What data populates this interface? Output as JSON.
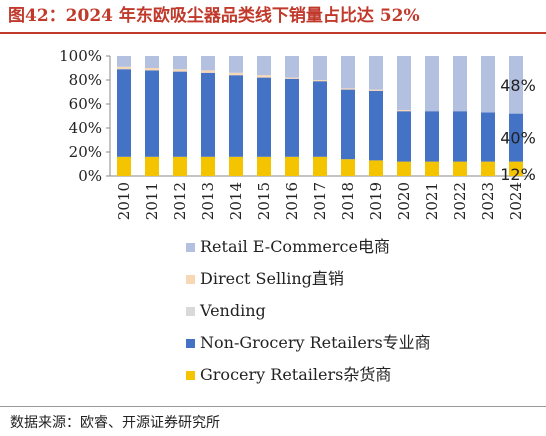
{
  "page": {
    "title": "图42：2024 年东欧吸尘器品类线下销量占比达 52%",
    "source": "数据来源：欧睿、开源证券研究所"
  },
  "chart_data": {
    "type": "bar",
    "stacked": true,
    "categories": [
      "2010",
      "2011",
      "2012",
      "2013",
      "2014",
      "2015",
      "2016",
      "2017",
      "2018",
      "2019",
      "2020",
      "2021",
      "2022",
      "2023",
      "2024"
    ],
    "series": [
      {
        "name": "Grocery Retailers杂货商",
        "color": "#f5c400",
        "values": [
          16,
          16,
          16,
          16,
          16,
          16,
          16,
          16,
          14,
          13,
          12,
          12,
          12,
          12,
          12
        ]
      },
      {
        "name": "Non-Grocery Retailers专业商",
        "color": "#4472c4",
        "values": [
          73,
          72,
          71,
          70,
          68,
          66,
          65,
          63,
          58,
          58,
          42,
          42,
          42,
          41,
          40
        ]
      },
      {
        "name": "Vending",
        "color": "#d9d9d9",
        "values": [
          0,
          0,
          0,
          0,
          0,
          0,
          0,
          0,
          0,
          0,
          0,
          0,
          0,
          0,
          0
        ]
      },
      {
        "name": "Direct Selling直销",
        "color": "#f8d7b5",
        "values": [
          2,
          2,
          2,
          2,
          2,
          2,
          1,
          1,
          1,
          1,
          1,
          0,
          0,
          0,
          0
        ]
      },
      {
        "name": "Retail E-Commerce电商",
        "color": "#b4c0e0",
        "values": [
          9,
          10,
          11,
          12,
          14,
          16,
          18,
          20,
          27,
          28,
          45,
          46,
          46,
          47,
          48
        ]
      }
    ],
    "yticks": [
      "0%",
      "20%",
      "40%",
      "60%",
      "80%",
      "100%"
    ],
    "ylim": [
      0,
      100
    ],
    "data_labels": [
      {
        "category": "2024",
        "series": "Retail E-Commerce电商",
        "text": "48%"
      },
      {
        "category": "2024",
        "series": "Non-Grocery Retailers专业商",
        "text": "40%"
      },
      {
        "category": "2024",
        "series": "Grocery Retailers杂货商",
        "text": "12%"
      }
    ],
    "legend_order": [
      "Retail E-Commerce电商",
      "Direct Selling直销",
      "Vending",
      "Non-Grocery Retailers专业商",
      "Grocery Retailers杂货商"
    ],
    "legend_position": "bottom",
    "grid": false
  }
}
